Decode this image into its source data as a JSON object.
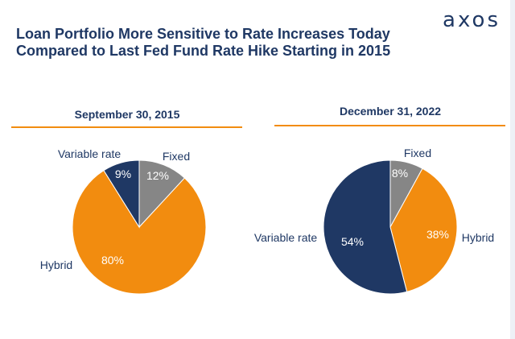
{
  "logo": "axos",
  "title": {
    "line1": "Loan Portfolio More Sensitive to Rate Increases Today",
    "line2": "Compared to Last Fed Fund Rate Hike Starting in 2015"
  },
  "colors": {
    "fixed": "#868686",
    "hybrid": "#f28c0f",
    "variable": "#1f3864",
    "accent_line": "#f28c0f",
    "text_dark": "#1f3864"
  },
  "chart_data": [
    {
      "type": "pie",
      "title": "September 30, 2015",
      "start_angle_deg": 0,
      "direction": "clockwise",
      "slices": [
        {
          "name": "Fixed",
          "value": 12,
          "label": "12%",
          "color": "#868686"
        },
        {
          "name": "Hybrid",
          "value": 80,
          "label": "80%",
          "color": "#f28c0f"
        },
        {
          "name": "Variable rate",
          "value": 9,
          "label": "9%",
          "color": "#1f3864"
        }
      ]
    },
    {
      "type": "pie",
      "title": "December 31, 2022",
      "start_angle_deg": 0,
      "direction": "clockwise",
      "slices": [
        {
          "name": "Fixed",
          "value": 8,
          "label": "8%",
          "color": "#868686"
        },
        {
          "name": "Hybrid",
          "value": 38,
          "label": "38%",
          "color": "#f28c0f"
        },
        {
          "name": "Variable rate",
          "value": 54,
          "label": "54%",
          "color": "#1f3864"
        }
      ]
    }
  ]
}
